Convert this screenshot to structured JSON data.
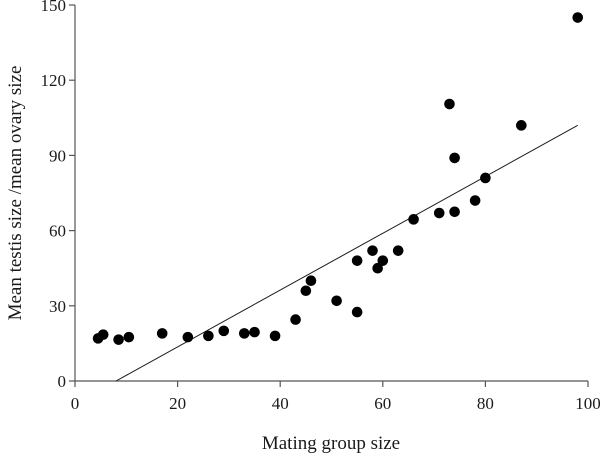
{
  "chart_data": {
    "type": "scatter",
    "xlabel": "Mating group size",
    "ylabel": "Mean testis size /mean ovary size",
    "xlim": [
      0,
      100
    ],
    "ylim": [
      0,
      150
    ],
    "x_ticks": [
      0,
      20,
      40,
      60,
      80,
      100
    ],
    "y_ticks": [
      0,
      30,
      60,
      90,
      120,
      150
    ],
    "grid": false,
    "legend": "none",
    "series": [
      {
        "points": [
          {
            "x": 4.5,
            "y": 17
          },
          {
            "x": 5.5,
            "y": 18.5
          },
          {
            "x": 8.5,
            "y": 16.5
          },
          {
            "x": 10.5,
            "y": 17.5
          },
          {
            "x": 17,
            "y": 19
          },
          {
            "x": 22,
            "y": 17.5
          },
          {
            "x": 26,
            "y": 18
          },
          {
            "x": 29,
            "y": 20
          },
          {
            "x": 33,
            "y": 19
          },
          {
            "x": 35,
            "y": 19.5
          },
          {
            "x": 39,
            "y": 18
          },
          {
            "x": 43,
            "y": 24.5
          },
          {
            "x": 45,
            "y": 36
          },
          {
            "x": 46,
            "y": 40
          },
          {
            "x": 51,
            "y": 32
          },
          {
            "x": 55,
            "y": 27.5
          },
          {
            "x": 55,
            "y": 48
          },
          {
            "x": 58,
            "y": 52
          },
          {
            "x": 59,
            "y": 45
          },
          {
            "x": 60,
            "y": 48
          },
          {
            "x": 63,
            "y": 52
          },
          {
            "x": 66,
            "y": 64.5
          },
          {
            "x": 71,
            "y": 67
          },
          {
            "x": 73,
            "y": 110.5
          },
          {
            "x": 74,
            "y": 89
          },
          {
            "x": 74,
            "y": 67.5
          },
          {
            "x": 78,
            "y": 72
          },
          {
            "x": 80,
            "y": 81
          },
          {
            "x": 87,
            "y": 102
          },
          {
            "x": 98,
            "y": 145
          }
        ]
      }
    ],
    "trendline": {
      "x": [
        8,
        98
      ],
      "y": [
        0,
        102
      ]
    }
  }
}
